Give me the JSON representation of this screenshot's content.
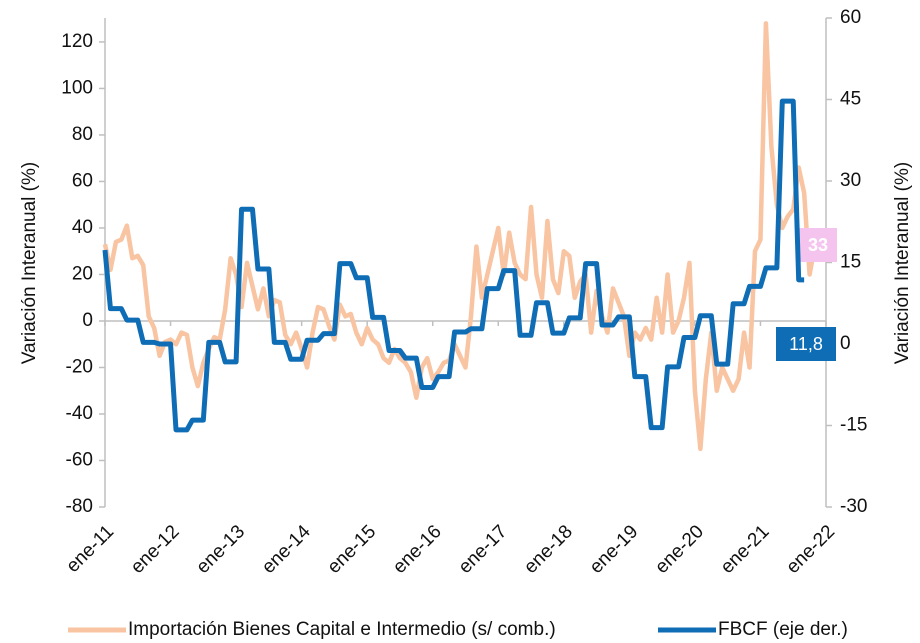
{
  "chart_data": {
    "type": "line",
    "ylabel": "Variación Interanual (%)",
    "y2label": "Variación Interanual (%)",
    "categories": [
      "ene-11",
      null,
      null,
      null,
      null,
      null,
      null,
      null,
      null,
      null,
      null,
      null,
      "ene-12",
      null,
      null,
      null,
      null,
      null,
      null,
      null,
      null,
      null,
      null,
      null,
      "ene-13",
      null,
      null,
      null,
      null,
      null,
      null,
      null,
      null,
      null,
      null,
      null,
      "ene-14",
      null,
      null,
      null,
      null,
      null,
      null,
      null,
      null,
      null,
      null,
      null,
      "ene-15",
      null,
      null,
      null,
      null,
      null,
      null,
      null,
      null,
      null,
      null,
      null,
      "ene-16",
      null,
      null,
      null,
      null,
      null,
      null,
      null,
      null,
      null,
      null,
      null,
      "ene-17",
      null,
      null,
      null,
      null,
      null,
      null,
      null,
      null,
      null,
      null,
      null,
      "ene-18",
      null,
      null,
      null,
      null,
      null,
      null,
      null,
      null,
      null,
      null,
      null,
      "ene-19",
      null,
      null,
      null,
      null,
      null,
      null,
      null,
      null,
      null,
      null,
      null,
      "ene-20",
      null,
      null,
      null,
      null,
      null,
      null,
      null,
      null,
      null,
      null,
      null,
      "ene-21",
      null,
      null,
      null,
      null,
      null,
      null,
      null,
      null,
      null,
      null,
      null,
      "ene-22"
    ],
    "ylim": [
      -80,
      130.3
    ],
    "yticks": [
      -80,
      -60,
      -40,
      -20,
      0,
      20,
      40,
      60,
      80,
      100,
      120
    ],
    "y2lim": [
      -30,
      60
    ],
    "y2ticks": [
      -30,
      -15,
      0,
      15,
      30,
      45,
      60
    ],
    "legend": "bottom",
    "series": [
      {
        "name": "Importación Bienes Capital e Intermedio (s/ comb.)",
        "color": "#f8c4a2",
        "label_color": "#f4c4ee",
        "values": [
          33,
          22,
          34,
          35,
          41,
          27,
          28,
          24,
          2,
          -3,
          -15,
          -9,
          -8,
          -10,
          -5,
          -6,
          -20,
          -28,
          -18,
          -12,
          -7,
          -8,
          5,
          27,
          20,
          6,
          25,
          15,
          5,
          14,
          2,
          9,
          8,
          -6,
          -10,
          -5,
          -12,
          -20,
          -5,
          6,
          5,
          -2,
          -8,
          7,
          2,
          3,
          -5,
          -10,
          -3,
          -8,
          -10,
          -16,
          -18,
          -12,
          -16,
          -18,
          -22,
          -33,
          -20,
          -16,
          -25,
          -22,
          -18,
          -17,
          -10,
          -15,
          -20,
          2,
          32,
          10,
          20,
          30,
          40,
          20,
          38,
          25,
          20,
          18,
          49,
          20,
          10,
          43,
          18,
          12,
          30,
          28,
          10,
          17,
          20,
          -5,
          13,
          2,
          -5,
          14,
          8,
          2,
          -15,
          -5,
          -8,
          -3,
          -8,
          10,
          -5,
          20,
          -5,
          0,
          10,
          25,
          -30,
          -55,
          -25,
          -5,
          -30,
          -20,
          -25,
          -30,
          -25,
          -5,
          -20,
          30,
          35,
          128,
          75,
          50,
          40,
          45,
          48,
          66,
          55,
          20,
          33,
          null,
          null
        ],
        "value_labels": [
          null,
          null,
          null,
          null,
          null,
          null,
          null,
          null,
          null,
          null,
          null,
          null,
          null,
          null,
          null,
          null,
          null,
          null,
          null,
          null,
          null,
          null,
          null,
          null,
          null,
          null,
          null,
          null,
          null,
          null,
          null,
          null,
          null,
          null,
          null,
          null,
          null,
          null,
          null,
          null,
          null,
          null,
          null,
          null,
          null,
          null,
          null,
          null,
          null,
          null,
          null,
          null,
          null,
          null,
          null,
          null,
          null,
          null,
          null,
          null,
          null,
          null,
          null,
          null,
          null,
          null,
          null,
          null,
          null,
          null,
          null,
          null,
          null,
          null,
          null,
          null,
          null,
          null,
          null,
          null,
          null,
          null,
          null,
          null,
          null,
          null,
          null,
          null,
          null,
          null,
          null,
          null,
          null,
          null,
          null,
          null,
          null,
          null,
          null,
          null,
          null,
          null,
          null,
          null,
          null,
          null,
          null,
          null,
          null,
          null,
          null,
          null,
          null,
          null,
          null,
          null,
          null,
          null,
          null,
          null,
          null,
          null,
          null,
          null,
          null,
          null,
          null,
          null,
          null,
          null,
          "33",
          null,
          null
        ]
      },
      {
        "name": "FBCF (eje der.)",
        "color": "#0f6db6",
        "axis": "y2",
        "label_color": "#0f6db6",
        "values": [
          17.3,
          6.5,
          6.5,
          6.5,
          4.4,
          4.4,
          4.4,
          0.3,
          0.3,
          0.3,
          0,
          0,
          0,
          -15.8,
          -15.8,
          -15.8,
          -14,
          -14,
          -14,
          0.3,
          0.3,
          0.3,
          -3.3,
          -3.3,
          -3.3,
          24.8,
          24.8,
          24.8,
          13.8,
          13.8,
          13.8,
          0.3,
          0.3,
          0.3,
          -2.8,
          -2.8,
          -2.8,
          0.7,
          0.7,
          0.7,
          1.9,
          1.9,
          1.9,
          14.8,
          14.8,
          14.8,
          12.2,
          12.2,
          12.2,
          4.9,
          4.9,
          4.9,
          -1.2,
          -1.2,
          -1.2,
          -2.6,
          -2.6,
          -2.6,
          -8,
          -8,
          -8,
          -6,
          -6,
          -6,
          2.2,
          2.2,
          2.2,
          2.8,
          2.8,
          2.8,
          10.2,
          10.2,
          10.2,
          13.5,
          13.5,
          13.5,
          1.6,
          1.6,
          1.6,
          7.6,
          7.6,
          7.6,
          2,
          2,
          2,
          4.8,
          4.8,
          4.8,
          14.8,
          14.8,
          14.8,
          3.5,
          3.5,
          3.5,
          5,
          5,
          5,
          -6,
          -6,
          -6,
          -15.4,
          -15.4,
          -15.4,
          -4.2,
          -4.2,
          -4.2,
          1.2,
          1.2,
          1.2,
          5.2,
          5.2,
          5.2,
          -3.7,
          -3.7,
          -3.7,
          7.4,
          7.4,
          7.4,
          10.6,
          10.6,
          10.6,
          14,
          14,
          14,
          44.7,
          44.7,
          44.7,
          11.8,
          11.8,
          null,
          null,
          null,
          null
        ],
        "value_labels": [
          null,
          null,
          null,
          null,
          null,
          null,
          null,
          null,
          null,
          null,
          null,
          null,
          null,
          null,
          null,
          null,
          null,
          null,
          null,
          null,
          null,
          null,
          null,
          null,
          null,
          null,
          null,
          null,
          null,
          null,
          null,
          null,
          null,
          null,
          null,
          null,
          null,
          null,
          null,
          null,
          null,
          null,
          null,
          null,
          null,
          null,
          null,
          null,
          null,
          null,
          null,
          null,
          null,
          null,
          null,
          null,
          null,
          null,
          null,
          null,
          null,
          null,
          null,
          null,
          null,
          null,
          null,
          null,
          null,
          null,
          null,
          null,
          null,
          null,
          null,
          null,
          null,
          null,
          null,
          null,
          null,
          null,
          null,
          null,
          null,
          null,
          null,
          null,
          null,
          null,
          null,
          null,
          null,
          null,
          null,
          null,
          null,
          null,
          null,
          null,
          null,
          null,
          null,
          null,
          null,
          null,
          null,
          null,
          null,
          null,
          null,
          null,
          null,
          null,
          null,
          null,
          null,
          null,
          null,
          null,
          null,
          null,
          null,
          null,
          null,
          null,
          null,
          "11,8",
          null,
          null,
          null,
          null,
          null
        ]
      }
    ]
  }
}
